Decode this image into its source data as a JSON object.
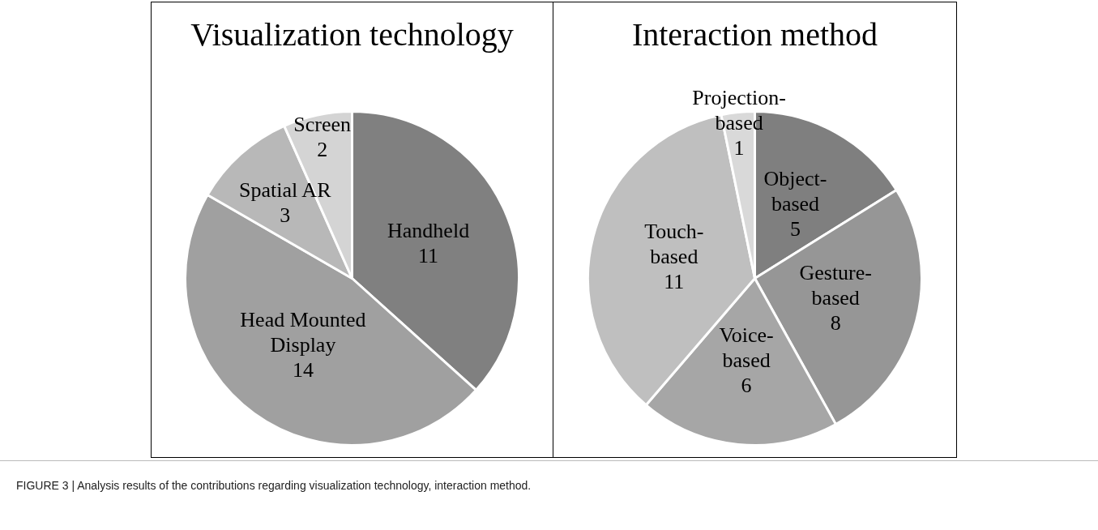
{
  "chart_data": [
    {
      "type": "pie",
      "title": "Visualization technology",
      "categories": [
        "Handheld",
        "Head Mounted Display",
        "Spatial AR",
        "Screen"
      ],
      "values": [
        11,
        14,
        3,
        2
      ],
      "colors": [
        "#808080",
        "#a0a0a0",
        "#b8b8b8",
        "#d4d4d4"
      ],
      "data_labels": true,
      "legend": false,
      "annotations": [
        "FIGURE 3 | Analysis results of the contributions regarding visualization technology, interaction method."
      ]
    },
    {
      "type": "pie",
      "title": "Interaction method",
      "categories": [
        "Object-based",
        "Gesture-based",
        "Voice-based",
        "Touch-based",
        "Projection-based"
      ],
      "values": [
        5,
        8,
        6,
        11,
        1
      ],
      "colors": [
        "#7f7f7f",
        "#969696",
        "#a6a6a6",
        "#bfbfbf",
        "#d9d9d9"
      ],
      "data_labels": true,
      "legend": false
    }
  ]
}
